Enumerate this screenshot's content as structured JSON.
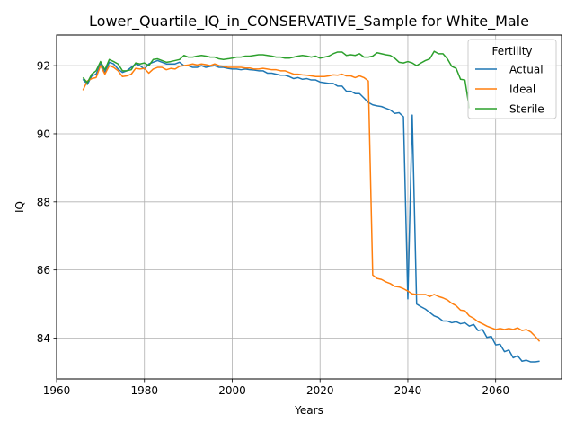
{
  "chart_data": {
    "type": "line",
    "title": "Lower_Quartile_IQ_in_CONSERVATIVE_Sample for White_Male",
    "xlabel": "Years",
    "ylabel": "IQ",
    "xlim": [
      1960,
      2075
    ],
    "ylim": [
      82.8,
      92.9
    ],
    "xticks": [
      1960,
      1980,
      2000,
      2020,
      2040,
      2060
    ],
    "yticks": [
      84,
      86,
      88,
      90,
      92
    ],
    "grid": true,
    "legend": {
      "title": "Fertility",
      "placement": "top-right"
    },
    "series": [
      {
        "name": "Actual",
        "color": "#1f77b4",
        "points": [
          [
            1966,
            91.6
          ],
          [
            1967,
            91.45
          ],
          [
            1968,
            91.7
          ],
          [
            1969,
            91.75
          ],
          [
            1970,
            92.05
          ],
          [
            1971,
            91.8
          ],
          [
            1972,
            92.1
          ],
          [
            1973,
            92.05
          ],
          [
            1974,
            91.9
          ],
          [
            1975,
            91.8
          ],
          [
            1976,
            91.85
          ],
          [
            1977,
            91.95
          ],
          [
            1978,
            92.05
          ],
          [
            1979,
            92.0
          ],
          [
            1980,
            91.9
          ],
          [
            1981,
            92.05
          ],
          [
            1982,
            92.1
          ],
          [
            1983,
            92.15
          ],
          [
            1984,
            92.1
          ],
          [
            1985,
            92.05
          ],
          [
            1986,
            92.05
          ],
          [
            1987,
            92.05
          ],
          [
            1988,
            92.1
          ],
          [
            1989,
            92.0
          ],
          [
            1990,
            92.0
          ],
          [
            1991,
            91.95
          ],
          [
            1992,
            91.95
          ],
          [
            1993,
            92.0
          ],
          [
            1994,
            91.95
          ],
          [
            1995,
            91.98
          ],
          [
            1996,
            92.0
          ],
          [
            1997,
            91.95
          ],
          [
            1998,
            91.95
          ],
          [
            1999,
            91.92
          ],
          [
            2000,
            91.9
          ],
          [
            2001,
            91.9
          ],
          [
            2002,
            91.88
          ],
          [
            2003,
            91.9
          ],
          [
            2004,
            91.88
          ],
          [
            2005,
            91.87
          ],
          [
            2006,
            91.85
          ],
          [
            2007,
            91.85
          ],
          [
            2008,
            91.78
          ],
          [
            2009,
            91.78
          ],
          [
            2010,
            91.75
          ],
          [
            2011,
            91.72
          ],
          [
            2012,
            91.72
          ],
          [
            2013,
            91.68
          ],
          [
            2014,
            91.62
          ],
          [
            2015,
            91.65
          ],
          [
            2016,
            91.6
          ],
          [
            2017,
            91.62
          ],
          [
            2018,
            91.58
          ],
          [
            2019,
            91.58
          ],
          [
            2020,
            91.52
          ],
          [
            2021,
            91.5
          ],
          [
            2022,
            91.48
          ],
          [
            2023,
            91.48
          ],
          [
            2024,
            91.4
          ],
          [
            2025,
            91.4
          ],
          [
            2026,
            91.25
          ],
          [
            2027,
            91.25
          ],
          [
            2028,
            91.18
          ],
          [
            2029,
            91.18
          ],
          [
            2030,
            91.05
          ],
          [
            2031,
            90.92
          ],
          [
            2032,
            90.85
          ],
          [
            2033,
            90.82
          ],
          [
            2034,
            90.8
          ],
          [
            2035,
            90.75
          ],
          [
            2036,
            90.7
          ],
          [
            2037,
            90.6
          ],
          [
            2038,
            90.62
          ],
          [
            2039,
            90.5
          ],
          [
            2040,
            85.15
          ],
          [
            2041,
            90.55
          ],
          [
            2042,
            85.0
          ],
          [
            2043,
            84.92
          ],
          [
            2044,
            84.85
          ],
          [
            2045,
            84.75
          ],
          [
            2046,
            84.65
          ],
          [
            2047,
            84.6
          ],
          [
            2048,
            84.5
          ],
          [
            2049,
            84.5
          ],
          [
            2050,
            84.45
          ],
          [
            2051,
            84.48
          ],
          [
            2052,
            84.42
          ],
          [
            2053,
            84.45
          ],
          [
            2054,
            84.35
          ],
          [
            2055,
            84.4
          ],
          [
            2056,
            84.22
          ],
          [
            2057,
            84.25
          ],
          [
            2058,
            84.02
          ],
          [
            2059,
            84.05
          ],
          [
            2060,
            83.8
          ],
          [
            2061,
            83.82
          ],
          [
            2062,
            83.6
          ],
          [
            2063,
            83.65
          ],
          [
            2064,
            83.42
          ],
          [
            2065,
            83.48
          ],
          [
            2066,
            83.32
          ],
          [
            2067,
            83.35
          ],
          [
            2068,
            83.3
          ],
          [
            2069,
            83.3
          ],
          [
            2070,
            83.32
          ]
        ]
      },
      {
        "name": "Ideal",
        "color": "#ff7f0e",
        "points": [
          [
            1966,
            91.28
          ],
          [
            1967,
            91.55
          ],
          [
            1968,
            91.62
          ],
          [
            1969,
            91.65
          ],
          [
            1970,
            92.0
          ],
          [
            1971,
            91.75
          ],
          [
            1972,
            92.0
          ],
          [
            1973,
            91.95
          ],
          [
            1974,
            91.85
          ],
          [
            1975,
            91.68
          ],
          [
            1976,
            91.7
          ],
          [
            1977,
            91.75
          ],
          [
            1978,
            91.92
          ],
          [
            1979,
            91.9
          ],
          [
            1980,
            91.92
          ],
          [
            1981,
            91.78
          ],
          [
            1982,
            91.9
          ],
          [
            1983,
            91.95
          ],
          [
            1984,
            91.95
          ],
          [
            1985,
            91.88
          ],
          [
            1986,
            91.92
          ],
          [
            1987,
            91.9
          ],
          [
            1988,
            91.98
          ],
          [
            1989,
            92.0
          ],
          [
            1990,
            92.02
          ],
          [
            1991,
            92.05
          ],
          [
            1992,
            92.02
          ],
          [
            1993,
            92.05
          ],
          [
            1994,
            92.03
          ],
          [
            1995,
            92.0
          ],
          [
            1996,
            92.05
          ],
          [
            1997,
            92.0
          ],
          [
            1998,
            91.98
          ],
          [
            1999,
            91.95
          ],
          [
            2000,
            91.95
          ],
          [
            2001,
            91.95
          ],
          [
            2002,
            91.95
          ],
          [
            2003,
            91.93
          ],
          [
            2004,
            91.93
          ],
          [
            2005,
            91.9
          ],
          [
            2006,
            91.9
          ],
          [
            2007,
            91.92
          ],
          [
            2008,
            91.9
          ],
          [
            2009,
            91.88
          ],
          [
            2010,
            91.88
          ],
          [
            2011,
            91.85
          ],
          [
            2012,
            91.85
          ],
          [
            2013,
            91.8
          ],
          [
            2014,
            91.75
          ],
          [
            2015,
            91.75
          ],
          [
            2016,
            91.73
          ],
          [
            2017,
            91.72
          ],
          [
            2018,
            91.7
          ],
          [
            2019,
            91.68
          ],
          [
            2020,
            91.68
          ],
          [
            2021,
            91.68
          ],
          [
            2022,
            91.7
          ],
          [
            2023,
            91.73
          ],
          [
            2024,
            91.72
          ],
          [
            2025,
            91.75
          ],
          [
            2026,
            91.7
          ],
          [
            2027,
            91.7
          ],
          [
            2028,
            91.65
          ],
          [
            2029,
            91.7
          ],
          [
            2030,
            91.65
          ],
          [
            2031,
            91.55
          ],
          [
            2032,
            85.85
          ],
          [
            2033,
            85.75
          ],
          [
            2034,
            85.72
          ],
          [
            2035,
            85.65
          ],
          [
            2036,
            85.6
          ],
          [
            2037,
            85.52
          ],
          [
            2038,
            85.5
          ],
          [
            2039,
            85.45
          ],
          [
            2040,
            85.38
          ],
          [
            2041,
            85.3
          ],
          [
            2042,
            85.28
          ],
          [
            2043,
            85.28
          ],
          [
            2044,
            85.28
          ],
          [
            2045,
            85.22
          ],
          [
            2046,
            85.28
          ],
          [
            2047,
            85.22
          ],
          [
            2048,
            85.18
          ],
          [
            2049,
            85.12
          ],
          [
            2050,
            85.02
          ],
          [
            2051,
            84.95
          ],
          [
            2052,
            84.82
          ],
          [
            2053,
            84.8
          ],
          [
            2054,
            84.65
          ],
          [
            2055,
            84.58
          ],
          [
            2056,
            84.48
          ],
          [
            2057,
            84.42
          ],
          [
            2058,
            84.35
          ],
          [
            2059,
            84.3
          ],
          [
            2060,
            84.25
          ],
          [
            2061,
            84.28
          ],
          [
            2062,
            84.25
          ],
          [
            2063,
            84.28
          ],
          [
            2064,
            84.25
          ],
          [
            2065,
            84.3
          ],
          [
            2066,
            84.22
          ],
          [
            2067,
            84.25
          ],
          [
            2068,
            84.18
          ],
          [
            2069,
            84.05
          ],
          [
            2070,
            83.9
          ]
        ]
      },
      {
        "name": "Sterile",
        "color": "#2ca02c",
        "points": [
          [
            1966,
            91.65
          ],
          [
            1967,
            91.5
          ],
          [
            1968,
            91.75
          ],
          [
            1969,
            91.85
          ],
          [
            1970,
            92.12
          ],
          [
            1971,
            91.88
          ],
          [
            1972,
            92.18
          ],
          [
            1973,
            92.12
          ],
          [
            1974,
            92.05
          ],
          [
            1975,
            91.85
          ],
          [
            1976,
            91.85
          ],
          [
            1977,
            91.88
          ],
          [
            1978,
            92.08
          ],
          [
            1979,
            92.05
          ],
          [
            1980,
            92.08
          ],
          [
            1981,
            92.0
          ],
          [
            1982,
            92.18
          ],
          [
            1983,
            92.2
          ],
          [
            1984,
            92.15
          ],
          [
            1985,
            92.1
          ],
          [
            1986,
            92.12
          ],
          [
            1987,
            92.15
          ],
          [
            1988,
            92.18
          ],
          [
            1989,
            92.3
          ],
          [
            1990,
            92.25
          ],
          [
            1991,
            92.25
          ],
          [
            1992,
            92.28
          ],
          [
            1993,
            92.3
          ],
          [
            1994,
            92.28
          ],
          [
            1995,
            92.25
          ],
          [
            1996,
            92.25
          ],
          [
            1997,
            92.2
          ],
          [
            1998,
            92.18
          ],
          [
            1999,
            92.2
          ],
          [
            2000,
            92.22
          ],
          [
            2001,
            92.25
          ],
          [
            2002,
            92.25
          ],
          [
            2003,
            92.28
          ],
          [
            2004,
            92.28
          ],
          [
            2005,
            92.3
          ],
          [
            2006,
            92.32
          ],
          [
            2007,
            92.32
          ],
          [
            2008,
            92.3
          ],
          [
            2009,
            92.28
          ],
          [
            2010,
            92.25
          ],
          [
            2011,
            92.25
          ],
          [
            2012,
            92.22
          ],
          [
            2013,
            92.22
          ],
          [
            2014,
            92.25
          ],
          [
            2015,
            92.28
          ],
          [
            2016,
            92.3
          ],
          [
            2017,
            92.28
          ],
          [
            2018,
            92.25
          ],
          [
            2019,
            92.28
          ],
          [
            2020,
            92.22
          ],
          [
            2021,
            92.25
          ],
          [
            2022,
            92.28
          ],
          [
            2023,
            92.35
          ],
          [
            2024,
            92.4
          ],
          [
            2025,
            92.4
          ],
          [
            2026,
            92.3
          ],
          [
            2027,
            92.32
          ],
          [
            2028,
            92.3
          ],
          [
            2029,
            92.35
          ],
          [
            2030,
            92.25
          ],
          [
            2031,
            92.25
          ],
          [
            2032,
            92.28
          ],
          [
            2033,
            92.38
          ],
          [
            2034,
            92.35
          ],
          [
            2035,
            92.32
          ],
          [
            2036,
            92.3
          ],
          [
            2037,
            92.22
          ],
          [
            2038,
            92.1
          ],
          [
            2039,
            92.08
          ],
          [
            2040,
            92.12
          ],
          [
            2041,
            92.08
          ],
          [
            2042,
            92.0
          ],
          [
            2043,
            92.08
          ],
          [
            2044,
            92.15
          ],
          [
            2045,
            92.2
          ],
          [
            2046,
            92.42
          ],
          [
            2047,
            92.35
          ],
          [
            2048,
            92.35
          ],
          [
            2049,
            92.2
          ],
          [
            2050,
            91.98
          ],
          [
            2051,
            91.92
          ],
          [
            2052,
            91.6
          ],
          [
            2053,
            91.58
          ],
          [
            2054,
            90.75
          ]
        ]
      }
    ]
  }
}
